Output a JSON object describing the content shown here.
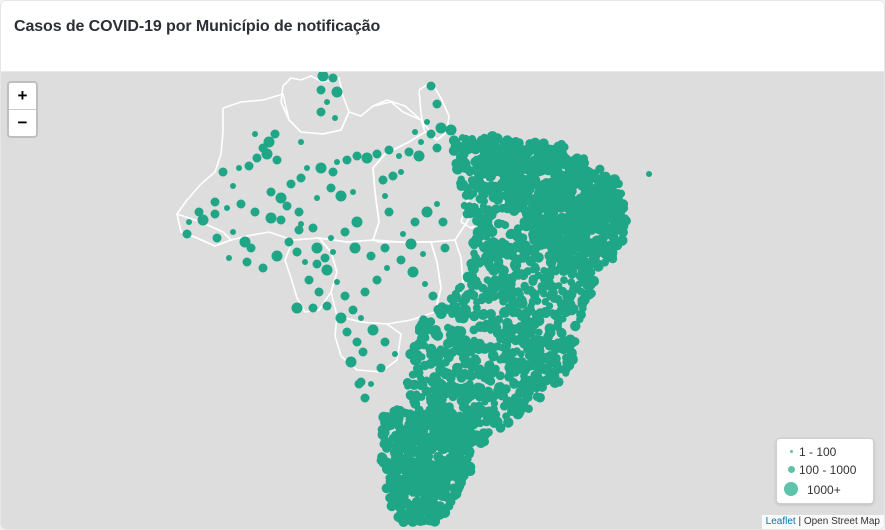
{
  "title": "Casos de COVID-19 por Município de notificação",
  "zoom": {
    "in_label": "+",
    "out_label": "−"
  },
  "legend": {
    "items": [
      {
        "label": "1 - 100"
      },
      {
        "label": "100 - 1000"
      },
      {
        "label": "1000+"
      }
    ]
  },
  "attribution": {
    "link_text": "Leaflet",
    "separator": " | ",
    "text": "Open Street Map"
  },
  "colors": {
    "marker": "#1fa686",
    "marker_legend": "#5fc2aa",
    "map_background": "#dddddd",
    "borders": "#ffffff"
  },
  "icons": {
    "zoom_in": "plus-icon",
    "zoom_out": "minus-icon"
  }
}
